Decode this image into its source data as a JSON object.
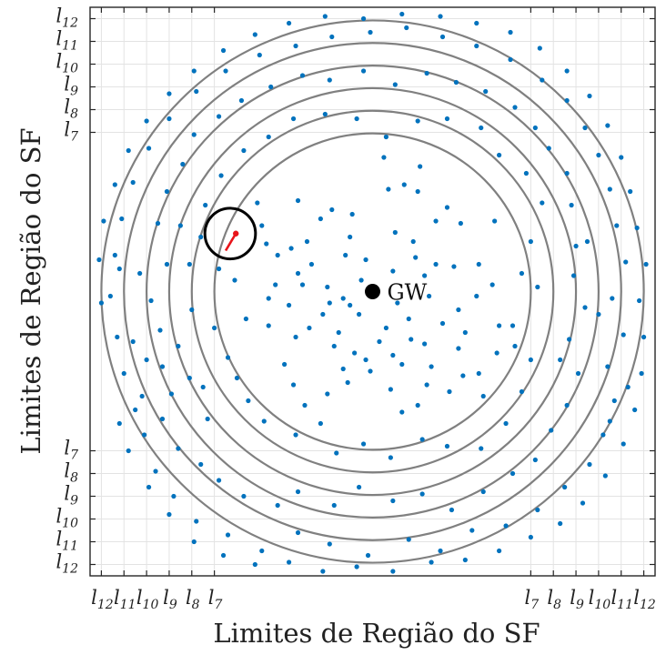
{
  "chart_data": {
    "type": "scatter",
    "xlabel": "Limites de Região do SF",
    "ylabel": "Limites de Região do SF",
    "xlim": [
      -12.5,
      12.5
    ],
    "ylim": [
      -12.5,
      12.5
    ],
    "grid": true,
    "ring_radii": [
      7,
      8,
      9,
      10,
      11,
      12
    ],
    "ring_color": "#808080",
    "point_color": "#0072BD",
    "highlight_color": "#e8141a",
    "gateway": {
      "label": "GW",
      "x": 0,
      "y": 0
    },
    "highlight_circle": {
      "cx": -6.3,
      "cy": 2.55,
      "r": 1.12
    },
    "highlight_segment": {
      "from": [
        -6.05,
        2.55
      ],
      "to": [
        -6.5,
        1.8
      ]
    },
    "x_ticks": [
      {
        "value": -12,
        "label": "l12"
      },
      {
        "value": -11,
        "label": "l11"
      },
      {
        "value": -10,
        "label": "l10"
      },
      {
        "value": -9,
        "label": "l9"
      },
      {
        "value": -8,
        "label": "l8"
      },
      {
        "value": -7,
        "label": "l7"
      },
      {
        "value": 7,
        "label": "l7"
      },
      {
        "value": 8,
        "label": "l8"
      },
      {
        "value": 9,
        "label": "l9"
      },
      {
        "value": 10,
        "label": "l10"
      },
      {
        "value": 11,
        "label": "l11"
      },
      {
        "value": 12,
        "label": "l12"
      }
    ],
    "y_ticks": [
      {
        "value": 12,
        "label": "l12"
      },
      {
        "value": 11,
        "label": "l11"
      },
      {
        "value": 10,
        "label": "l10"
      },
      {
        "value": 9,
        "label": "l9"
      },
      {
        "value": 8,
        "label": "l8"
      },
      {
        "value": 7,
        "label": "l7"
      },
      {
        "value": -7,
        "label": "l7"
      },
      {
        "value": -8,
        "label": "l8"
      },
      {
        "value": -9,
        "label": "l9"
      },
      {
        "value": -10,
        "label": "l10"
      },
      {
        "value": -11,
        "label": "l11"
      },
      {
        "value": -12,
        "label": "l12"
      }
    ],
    "series": [
      {
        "points": [
          [
            0.5,
            5.9
          ],
          [
            0.7,
            4.5
          ],
          [
            2.1,
            5.5
          ],
          [
            2.0,
            4.4
          ],
          [
            3.3,
            3.7
          ],
          [
            1.4,
            4.7
          ],
          [
            2.8,
            3.1
          ],
          [
            3.9,
            3.0
          ],
          [
            -0.9,
            3.4
          ],
          [
            -1.8,
            3.6
          ],
          [
            -2.3,
            3.2
          ],
          [
            -3.6,
            1.9
          ],
          [
            -3.3,
            4.0
          ],
          [
            -4.2,
            1.6
          ],
          [
            -3.3,
            0.8
          ],
          [
            -3.1,
            0.3
          ],
          [
            -2.0,
            0.2
          ],
          [
            -4.3,
            0.3
          ],
          [
            -0.3,
            1.4
          ],
          [
            0.9,
            0.9
          ],
          [
            1.8,
            2.2
          ],
          [
            2.3,
            0.7
          ],
          [
            1.0,
            2.6
          ],
          [
            2.5,
            -0.2
          ],
          [
            1.6,
            -1.2
          ],
          [
            0.6,
            -1.6
          ],
          [
            -0.6,
            -1.0
          ],
          [
            -1.0,
            -0.6
          ],
          [
            -1.3,
            -0.3
          ],
          [
            -1.9,
            -0.5
          ],
          [
            -2.2,
            -1.0
          ],
          [
            -2.8,
            -1.6
          ],
          [
            -3.4,
            -2.0
          ],
          [
            -1.7,
            -2.4
          ],
          [
            -0.8,
            -2.7
          ],
          [
            -0.3,
            -3.0
          ],
          [
            -0.1,
            -3.5
          ],
          [
            0.9,
            -2.8
          ],
          [
            1.3,
            -3.2
          ],
          [
            1.7,
            -2.1
          ],
          [
            2.3,
            -2.3
          ],
          [
            2.6,
            -3.3
          ],
          [
            3.8,
            -2.5
          ],
          [
            4.1,
            -1.8
          ],
          [
            3.8,
            -0.8
          ],
          [
            4.6,
            -0.2
          ],
          [
            5.3,
            0.3
          ],
          [
            4.7,
            1.2
          ],
          [
            3.6,
            1.1
          ],
          [
            2.8,
            1.2
          ],
          [
            -1.2,
            1.6
          ],
          [
            -1.0,
            2.4
          ],
          [
            -2.9,
            2.2
          ],
          [
            -4.9,
            2.9
          ],
          [
            -4.7,
            2.1
          ],
          [
            -4.6,
            -0.3
          ],
          [
            -3.7,
            -0.6
          ],
          [
            -4.6,
            -1.5
          ],
          [
            -3.9,
            -3.2
          ],
          [
            -3.5,
            -4.1
          ],
          [
            -2.0,
            -4.5
          ],
          [
            -1.1,
            -4.0
          ],
          [
            0.8,
            -4.3
          ],
          [
            1.3,
            -5.3
          ],
          [
            2.4,
            -4.1
          ],
          [
            3.4,
            -4.4
          ],
          [
            4.0,
            -3.7
          ],
          [
            4.7,
            -3.6
          ],
          [
            5.5,
            -2.7
          ],
          [
            5.6,
            -1.5
          ],
          [
            -5.6,
            -1.2
          ],
          [
            -6.1,
            0.5
          ],
          [
            -6.4,
            -2.9
          ],
          [
            -7.5,
            -4.2
          ],
          [
            -7.3,
            -5.6
          ],
          [
            -5.5,
            -4.8
          ],
          [
            -4.8,
            -5.7
          ],
          [
            -3.4,
            -6.3
          ],
          [
            -2.3,
            -5.8
          ],
          [
            -1.6,
            -7.1
          ],
          [
            -0.4,
            -6.7
          ],
          [
            0.8,
            -7.3
          ],
          [
            2.2,
            -6.5
          ],
          [
            3.3,
            -6.8
          ],
          [
            4.8,
            -6.9
          ],
          [
            5.9,
            -5.8
          ],
          [
            6.6,
            -4.4
          ],
          [
            7.0,
            -3.0
          ],
          [
            6.2,
            -1.5
          ],
          [
            6.6,
            0.8
          ],
          [
            7.0,
            2.2
          ],
          [
            7.5,
            3.9
          ],
          [
            6.8,
            5.2
          ],
          [
            5.6,
            6.0
          ],
          [
            4.8,
            7.2
          ],
          [
            3.3,
            7.6
          ],
          [
            2.0,
            7.5
          ],
          [
            0.6,
            6.8
          ],
          [
            -0.7,
            7.6
          ],
          [
            -2.1,
            7.8
          ],
          [
            -3.5,
            7.6
          ],
          [
            -4.6,
            6.8
          ],
          [
            -5.7,
            6.2
          ],
          [
            -6.7,
            5.1
          ],
          [
            -7.4,
            3.8
          ],
          [
            -7.6,
            2.4
          ],
          [
            -8.1,
            1.2
          ],
          [
            -8.0,
            -0.8
          ],
          [
            -8.6,
            -2.4
          ],
          [
            -8.1,
            -3.8
          ],
          [
            -8.9,
            -4.5
          ],
          [
            -9.3,
            -5.6
          ],
          [
            -8.6,
            -6.9
          ],
          [
            -7.6,
            -7.6
          ],
          [
            -6.8,
            -8.3
          ],
          [
            -5.7,
            -9.0
          ],
          [
            -4.2,
            -9.4
          ],
          [
            -3.3,
            -8.8
          ],
          [
            -1.7,
            -9.4
          ],
          [
            -0.6,
            -8.6
          ],
          [
            0.9,
            -9.2
          ],
          [
            2.2,
            -8.9
          ],
          [
            3.5,
            -9.6
          ],
          [
            4.9,
            -8.8
          ],
          [
            6.2,
            -8.0
          ],
          [
            7.2,
            -7.4
          ],
          [
            7.9,
            -6.1
          ],
          [
            8.6,
            -5.0
          ],
          [
            9.1,
            -3.6
          ],
          [
            8.7,
            -2.1
          ],
          [
            9.4,
            -0.7
          ],
          [
            8.9,
            0.7
          ],
          [
            9.5,
            2.2
          ],
          [
            8.8,
            3.8
          ],
          [
            8.6,
            5.2
          ],
          [
            7.8,
            6.3
          ],
          [
            7.2,
            7.2
          ],
          [
            6.3,
            8.1
          ],
          [
            5.0,
            8.8
          ],
          [
            3.7,
            9.2
          ],
          [
            2.4,
            9.6
          ],
          [
            1.0,
            9.1
          ],
          [
            -0.4,
            9.7
          ],
          [
            -1.9,
            9.3
          ],
          [
            -3.1,
            9.5
          ],
          [
            -4.5,
            9.0
          ],
          [
            -5.8,
            8.4
          ],
          [
            -6.8,
            7.7
          ],
          [
            -7.9,
            6.9
          ],
          [
            -8.4,
            5.6
          ],
          [
            -9.1,
            4.4
          ],
          [
            -9.5,
            3.0
          ],
          [
            -9.1,
            1.2
          ],
          [
            -9.8,
            -0.4
          ],
          [
            -9.4,
            -1.7
          ],
          [
            -10.0,
            -3.0
          ],
          [
            -10.2,
            -4.6
          ],
          [
            -10.1,
            -6.3
          ],
          [
            -9.6,
            -7.9
          ],
          [
            -8.8,
            -9.0
          ],
          [
            -7.8,
            -10.1
          ],
          [
            -6.4,
            -10.7
          ],
          [
            -4.9,
            -11.4
          ],
          [
            -3.3,
            -10.6
          ],
          [
            -1.9,
            -11.1
          ],
          [
            -0.2,
            -11.6
          ],
          [
            1.6,
            -10.9
          ],
          [
            3.0,
            -11.4
          ],
          [
            4.4,
            -10.5
          ],
          [
            5.9,
            -10.3
          ],
          [
            7.3,
            -9.6
          ],
          [
            8.5,
            -8.6
          ],
          [
            9.6,
            -7.6
          ],
          [
            10.2,
            -6.3
          ],
          [
            10.7,
            -4.8
          ],
          [
            10.4,
            -3.3
          ],
          [
            11.1,
            -1.9
          ],
          [
            10.6,
            -0.3
          ],
          [
            11.2,
            1.3
          ],
          [
            10.8,
            2.9
          ],
          [
            10.5,
            4.5
          ],
          [
            10.0,
            6.0
          ],
          [
            9.4,
            7.2
          ],
          [
            8.6,
            8.4
          ],
          [
            7.5,
            9.3
          ],
          [
            6.1,
            10.2
          ],
          [
            4.6,
            10.8
          ],
          [
            3.1,
            11.2
          ],
          [
            1.5,
            11.6
          ],
          [
            -0.1,
            11.4
          ],
          [
            -1.8,
            11.2
          ],
          [
            -3.4,
            10.8
          ],
          [
            -5.0,
            10.4
          ],
          [
            -6.5,
            9.7
          ],
          [
            -7.8,
            8.8
          ],
          [
            -9.0,
            7.6
          ],
          [
            -9.9,
            6.3
          ],
          [
            -10.6,
            4.8
          ],
          [
            -11.1,
            3.2
          ],
          [
            -11.4,
            1.6
          ],
          [
            -11.6,
            -0.2
          ],
          [
            -11.3,
            -2.0
          ],
          [
            -11.0,
            -3.6
          ],
          [
            -10.5,
            -5.2
          ],
          [
            -11.2,
            -5.8
          ],
          [
            -10.8,
            -7.0
          ],
          [
            -9.9,
            -8.6
          ],
          [
            -9.0,
            -9.8
          ],
          [
            -7.9,
            -11.0
          ],
          [
            -6.6,
            -11.6
          ],
          [
            -5.2,
            -12.0
          ],
          [
            -3.7,
            -11.9
          ],
          [
            -2.2,
            -12.3
          ],
          [
            -0.7,
            -12.1
          ],
          [
            0.9,
            -12.3
          ],
          [
            2.6,
            -11.9
          ],
          [
            4.1,
            -11.8
          ],
          [
            5.6,
            -11.4
          ],
          [
            7.0,
            -10.8
          ],
          [
            8.3,
            -10.2
          ],
          [
            9.3,
            -9.3
          ],
          [
            10.3,
            -8.1
          ],
          [
            11.1,
            -6.7
          ],
          [
            11.6,
            -5.2
          ],
          [
            11.9,
            -3.6
          ],
          [
            12.0,
            -2.0
          ],
          [
            11.8,
            -0.4
          ],
          [
            12.1,
            1.2
          ],
          [
            11.7,
            2.8
          ],
          [
            11.4,
            4.4
          ],
          [
            11.0,
            5.9
          ],
          [
            10.4,
            7.3
          ],
          [
            9.6,
            8.6
          ],
          [
            8.6,
            9.7
          ],
          [
            7.4,
            10.7
          ],
          [
            6.1,
            11.4
          ],
          [
            4.6,
            11.8
          ],
          [
            3.0,
            12.1
          ],
          [
            1.3,
            12.2
          ],
          [
            -0.4,
            12.0
          ],
          [
            -2.1,
            12.1
          ],
          [
            -3.7,
            11.8
          ],
          [
            -5.2,
            11.3
          ],
          [
            -6.6,
            10.6
          ],
          [
            -7.9,
            9.7
          ],
          [
            -9.0,
            8.7
          ],
          [
            -10.0,
            7.5
          ],
          [
            -10.8,
            6.2
          ],
          [
            -11.4,
            4.7
          ],
          [
            -11.9,
            3.1
          ],
          [
            -12.1,
            1.4
          ],
          [
            -12.0,
            -0.5
          ],
          [
            -1.5,
            -1.8
          ],
          [
            0.3,
            -2.2
          ],
          [
            1.1,
            -0.5
          ],
          [
            -0.5,
            0.5
          ],
          [
            1.9,
            1.5
          ],
          [
            -2.7,
            1.2
          ],
          [
            3.1,
            -1.4
          ],
          [
            -1.3,
            -3.4
          ],
          [
            2.0,
            -5.0
          ],
          [
            -3.0,
            -5.0
          ],
          [
            4.9,
            -4.6
          ],
          [
            -5.1,
            3.9
          ],
          [
            5.4,
            3.1
          ],
          [
            -6.0,
            -3.8
          ],
          [
            6.3,
            -2.4
          ],
          [
            -6.8,
            1.0
          ],
          [
            7.3,
            0.2
          ],
          [
            -7.0,
            -1.6
          ],
          [
            8.3,
            -3.0
          ],
          [
            -8.5,
            2.9
          ],
          [
            9.0,
            2.0
          ],
          [
            -9.3,
            -3.3
          ],
          [
            10.0,
            -1.0
          ],
          [
            -10.3,
            0.8
          ],
          [
            10.5,
            -5.7
          ],
          [
            -10.6,
            -2.2
          ],
          [
            11.3,
            -4.2
          ],
          [
            -11.2,
            1.0
          ]
        ]
      }
    ]
  }
}
